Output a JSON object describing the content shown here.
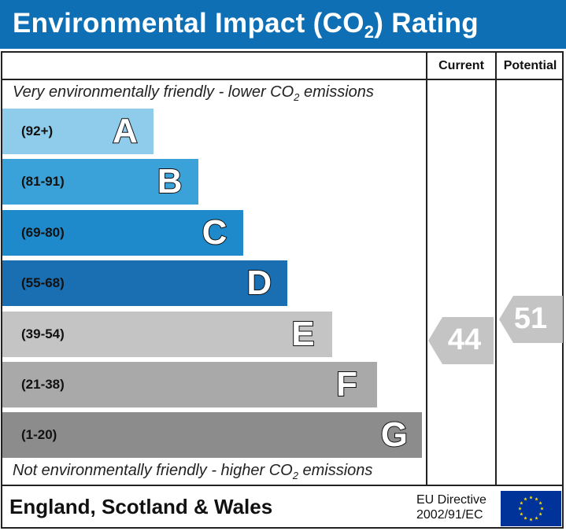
{
  "header": {
    "title_main": "Environmental Impact (CO",
    "title_sub": "2",
    "title_end": ") Rating"
  },
  "columns": {
    "current": "Current",
    "potential": "Potential"
  },
  "notes": {
    "top_main": "Very environmentally friendly - lower CO",
    "top_sub": "2",
    "top_end": " emissions",
    "bottom_main": "Not environmentally friendly - higher CO",
    "bottom_sub": "2",
    "bottom_end": " emissions"
  },
  "footer": {
    "country": "England, Scotland & Wales",
    "directive_line1": "EU Directive",
    "directive_line2": "2002/91/EC"
  },
  "chart_data": {
    "type": "bar",
    "categories": [
      "A",
      "B",
      "C",
      "D",
      "E",
      "F",
      "G"
    ],
    "ranges": [
      "(92+)",
      "(81-91)",
      "(69-80)",
      "(55-68)",
      "(39-54)",
      "(21-38)",
      "(1-20)"
    ],
    "colors": [
      "#8fcbea",
      "#3aa2d8",
      "#1f8acb",
      "#1a6fb2",
      "#c4c4c4",
      "#a9a9a9",
      "#8c8c8c"
    ],
    "current": {
      "value": 44,
      "band": "E",
      "color": "#c4c4c4"
    },
    "potential": {
      "value": 51,
      "band": "E",
      "color": "#c4c4c4"
    }
  }
}
